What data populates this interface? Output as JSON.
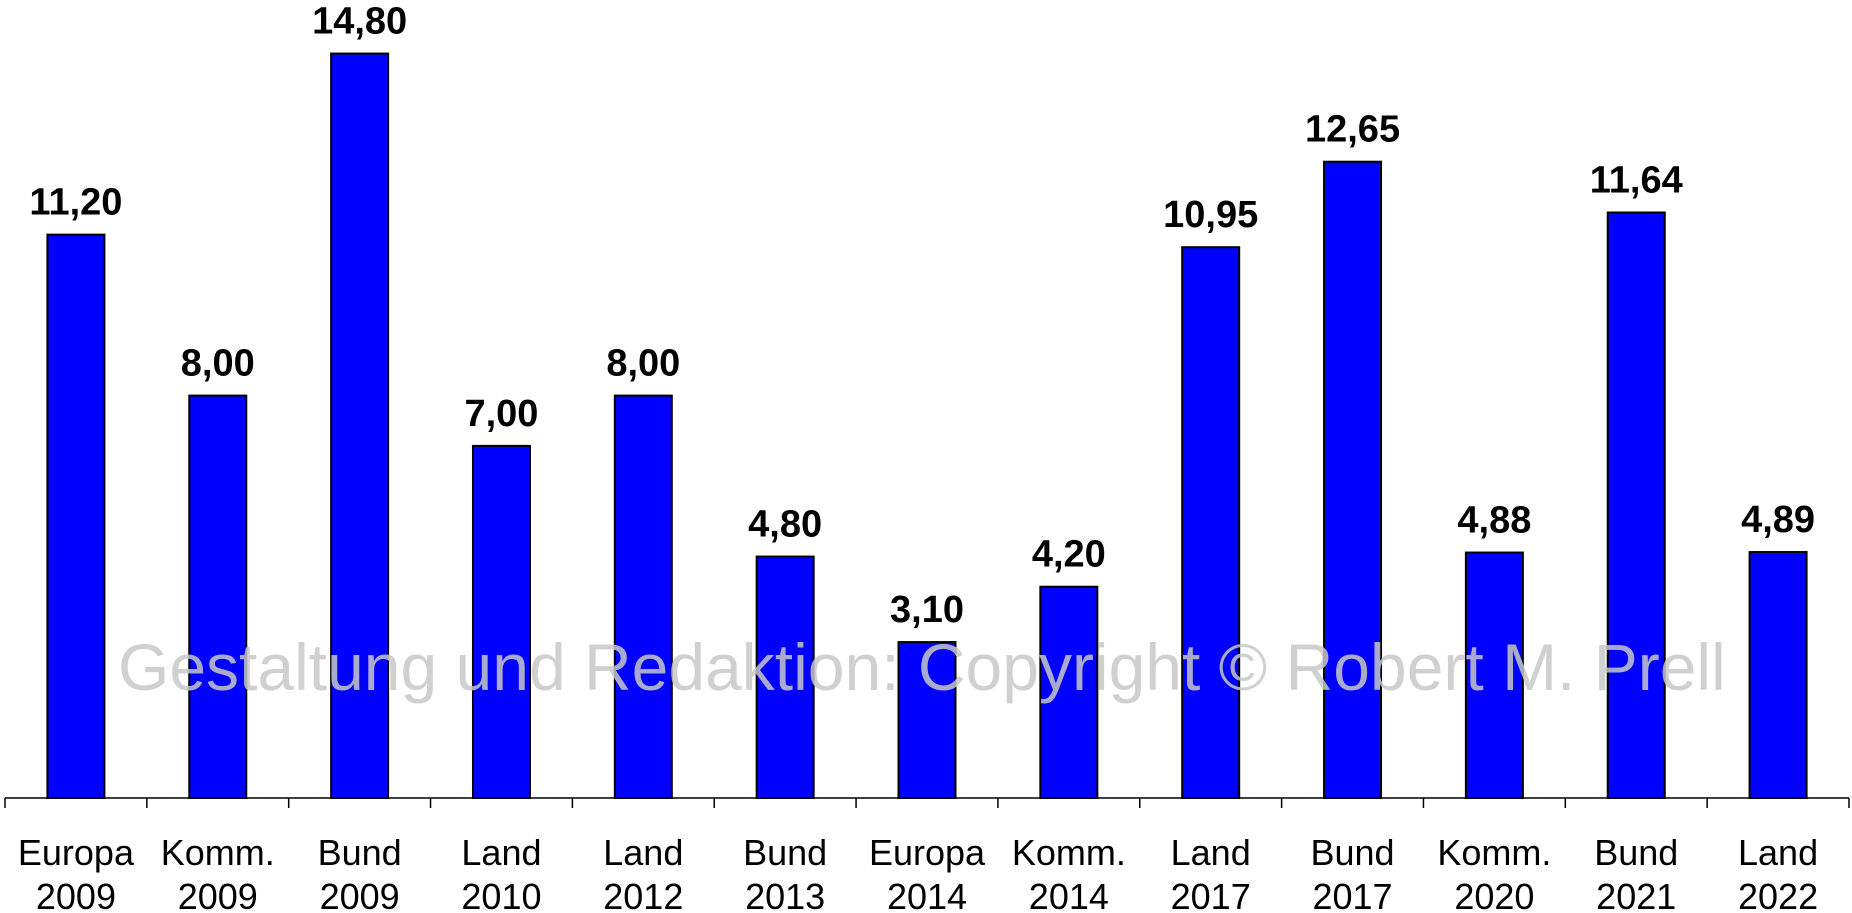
{
  "watermark": "Gestaltung und Redaktion: Copyright © Robert M. Prell",
  "chart_data": {
    "type": "bar",
    "categories": [
      [
        "Europa",
        "2009"
      ],
      [
        "Komm.",
        "2009"
      ],
      [
        "Bund",
        "2009"
      ],
      [
        "Land",
        "2010"
      ],
      [
        "Land",
        "2012"
      ],
      [
        "Bund",
        "2013"
      ],
      [
        "Europa",
        "2014"
      ],
      [
        "Komm.",
        "2014"
      ],
      [
        "Land",
        "2017"
      ],
      [
        "Bund",
        "2017"
      ],
      [
        "Komm.",
        "2020"
      ],
      [
        "Bund",
        "2021"
      ],
      [
        "Land",
        "2022"
      ]
    ],
    "values": [
      11.2,
      8.0,
      14.8,
      7.0,
      8.0,
      4.8,
      3.1,
      4.2,
      10.95,
      12.65,
      4.88,
      11.64,
      4.89
    ],
    "value_labels": [
      "11,20",
      "8,00",
      "14,80",
      "7,00",
      "8,00",
      "4,80",
      "3,10",
      "4,20",
      "10,95",
      "12,65",
      "4,88",
      "11,64",
      "4,89"
    ],
    "ylim": [
      0,
      15
    ],
    "bar_color": "#0000ff",
    "grid": false,
    "legend": "none",
    "title": "",
    "xlabel": "",
    "ylabel": ""
  }
}
